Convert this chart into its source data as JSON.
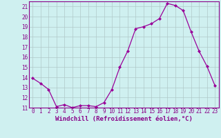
{
  "x": [
    0,
    1,
    2,
    3,
    4,
    5,
    6,
    7,
    8,
    9,
    10,
    11,
    12,
    13,
    14,
    15,
    16,
    17,
    18,
    19,
    20,
    21,
    22,
    23
  ],
  "y": [
    13.9,
    13.4,
    12.8,
    11.1,
    11.3,
    11.0,
    11.2,
    11.2,
    11.1,
    11.5,
    12.8,
    15.0,
    16.6,
    18.8,
    19.0,
    19.3,
    19.8,
    21.3,
    21.1,
    20.6,
    18.5,
    16.6,
    15.1,
    13.2
  ],
  "line_color": "#990099",
  "marker": "D",
  "marker_size": 2.0,
  "bg_color": "#cff0f0",
  "grid_color": "#b0c8c8",
  "xlabel": "Windchill (Refroidissement éolien,°C)",
  "ylim": [
    11,
    21.5
  ],
  "xlim": [
    -0.5,
    23.5
  ],
  "yticks": [
    11,
    12,
    13,
    14,
    15,
    16,
    17,
    18,
    19,
    20,
    21
  ],
  "xticks": [
    0,
    1,
    2,
    3,
    4,
    5,
    6,
    7,
    8,
    9,
    10,
    11,
    12,
    13,
    14,
    15,
    16,
    17,
    18,
    19,
    20,
    21,
    22,
    23
  ],
  "tick_fontsize": 5.5,
  "xlabel_fontsize": 6.5,
  "axis_color": "#880088"
}
